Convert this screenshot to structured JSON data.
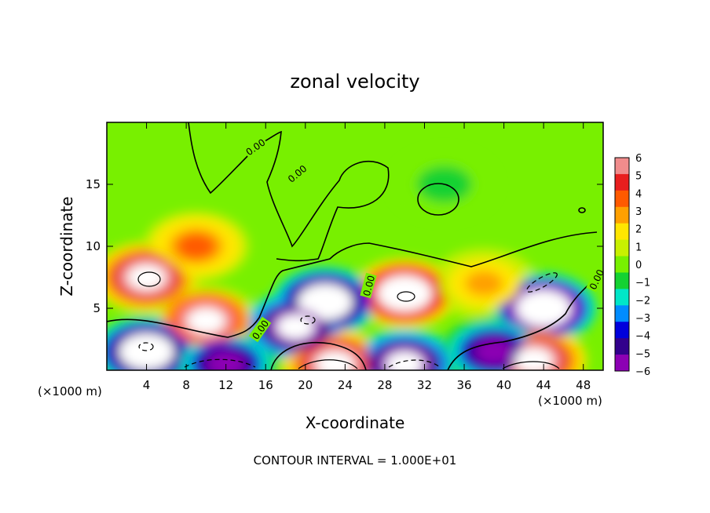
{
  "chart_data": {
    "type": "heatmap",
    "title": "zonal velocity",
    "xlabel": "X-coordinate",
    "ylabel": "Z-coordinate",
    "x_unit_left": "(×1000 m)",
    "x_unit_right": "(×1000 m)",
    "footer": "CONTOUR INTERVAL = 1.000E+01",
    "xlim": [
      0,
      50
    ],
    "ylim": [
      0,
      20
    ],
    "x_ticks": [
      4,
      8,
      12,
      16,
      20,
      24,
      28,
      32,
      36,
      40,
      44,
      48
    ],
    "y_ticks": [
      5,
      10,
      15
    ],
    "colorbar": {
      "labels": [
        "6",
        "5",
        "4",
        "3",
        "2",
        "1",
        "0",
        "−1",
        "−2",
        "−3",
        "−4",
        "−5",
        "−6"
      ],
      "colors": [
        "#f08c8c",
        "#e81e1e",
        "#ff5a00",
        "#ffa000",
        "#ffe600",
        "#c8f000",
        "#78f000",
        "#14d232",
        "#00e6c8",
        "#008cff",
        "#0000dc",
        "#32008c",
        "#8c00b4"
      ]
    },
    "features": [
      {
        "x": 4,
        "z": 7.5,
        "value": 8
      },
      {
        "x": 10,
        "z": 4,
        "value": 7
      },
      {
        "x": 9,
        "z": 10,
        "value": 4
      },
      {
        "x": 30,
        "z": 6.2,
        "value": 9
      },
      {
        "x": 38,
        "z": 7,
        "value": 3
      },
      {
        "x": 22,
        "z": 5.5,
        "value": -9
      },
      {
        "x": 19,
        "z": 3.5,
        "value": -8
      },
      {
        "x": 44,
        "z": 5,
        "value": -10
      },
      {
        "x": 4,
        "z": 1.5,
        "value": -9
      },
      {
        "x": 12,
        "z": 0.5,
        "value": -6
      },
      {
        "x": 23,
        "z": 0.5,
        "value": 8
      },
      {
        "x": 30,
        "z": 0.5,
        "value": -8
      },
      {
        "x": 43,
        "z": 0.8,
        "value": 8
      },
      {
        "x": 39,
        "z": 1.5,
        "value": -6
      },
      {
        "x": 34,
        "z": 15,
        "value": -0.8
      }
    ],
    "contour_labels": [
      "0.00",
      "0.00",
      "0.00",
      "0.00",
      "0.00",
      "0.00"
    ]
  }
}
